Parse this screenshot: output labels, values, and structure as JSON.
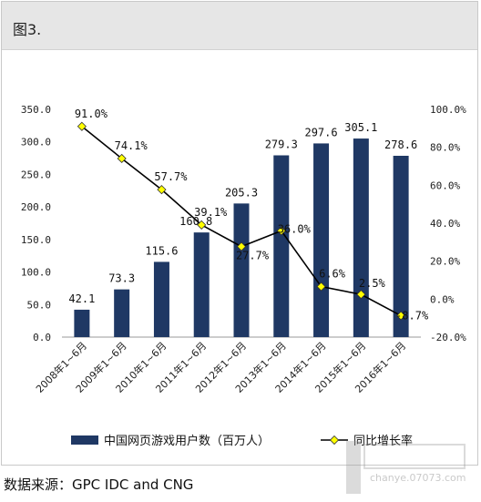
{
  "page": {
    "title": "图3."
  },
  "source_note": "数据来源：GPC IDC and CNG",
  "watermark_site": "chanye.07073.com",
  "chart_data": {
    "type": "bar",
    "categories": [
      "2008年1~6月",
      "2009年1~6月",
      "2010年1~6月",
      "2011年1~6月",
      "2012年1~6月",
      "2013年1~6月",
      "2014年1~6月",
      "2015年1~6月",
      "2016年1~6月"
    ],
    "series": [
      {
        "name": "中国网页游戏用户数（百万人）",
        "type": "bar",
        "axis": "left",
        "values": [
          42.1,
          73.3,
          115.6,
          160.8,
          205.3,
          279.3,
          297.6,
          305.1,
          278.6
        ],
        "labels": [
          "42.1",
          "73.3",
          "115.6",
          "160.8",
          "205.3",
          "279.3",
          "297.6",
          "305.1",
          "278.6"
        ],
        "color": "#1f3864"
      },
      {
        "name": "同比增长率",
        "type": "line",
        "axis": "right",
        "values": [
          91.0,
          74.1,
          57.7,
          39.1,
          27.7,
          36.0,
          6.6,
          2.5,
          -8.7
        ],
        "labels": [
          "91.0%",
          "74.1%",
          "57.7%",
          "39.1%",
          "27.7%",
          "36.0%",
          "6.6%",
          "2.5%",
          "-8.7%"
        ],
        "color": "#000000",
        "marker_color": "#ffff00"
      }
    ],
    "y_left": {
      "min": 0,
      "max": 350,
      "ticks": [
        "0.0",
        "50.0",
        "100.0",
        "150.0",
        "200.0",
        "250.0",
        "300.0",
        "350.0"
      ]
    },
    "y_right": {
      "min": -20,
      "max": 100,
      "ticks": [
        "-20.0%",
        "0.0%",
        "20.0%",
        "40.0%",
        "60.0%",
        "80.0%",
        "100.0%"
      ]
    },
    "grid": false,
    "legend_position": "bottom"
  }
}
